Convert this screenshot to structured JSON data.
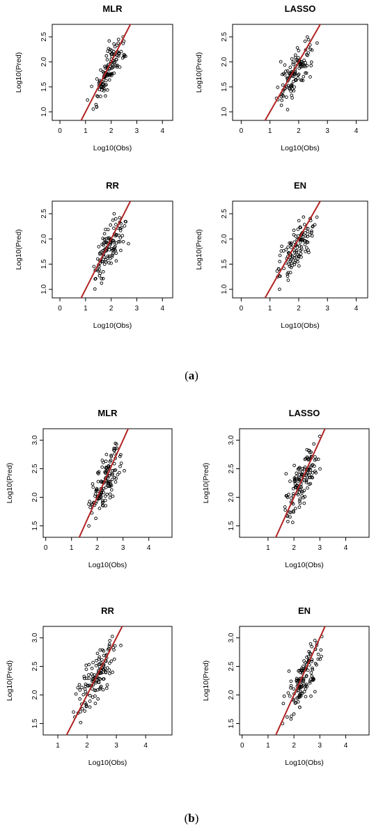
{
  "captions": {
    "a": {
      "open": "(",
      "letter": "a",
      "close": ")"
    },
    "b": {
      "open": "(",
      "letter": "b",
      "close": ")"
    }
  },
  "colors": {
    "fit_line": "#b22222",
    "points": "#000000",
    "frame": "#000000"
  },
  "chart_data": [
    {
      "id": "a-MLR",
      "type": "scatter",
      "title": "MLR",
      "xlabel": "Log10(Obs)",
      "ylabel": "Log10(Pred)",
      "xlim": [
        -0.3,
        4.4
      ],
      "ylim": [
        0.83,
        2.75
      ],
      "xticks": [
        "0",
        "1",
        "2",
        "3",
        "4"
      ],
      "yticks": [
        "1.0",
        "1.5",
        "2.0",
        "2.5"
      ],
      "fit_line": {
        "slope": 1,
        "intercept": 0
      },
      "point_cloud": {
        "n": 120,
        "x_range": [
          1.0,
          2.8
        ],
        "y_range": [
          1.0,
          2.6
        ],
        "seed": 11
      }
    },
    {
      "id": "a-LASSO",
      "type": "scatter",
      "title": "LASSO",
      "xlabel": "Log10(Obs)",
      "ylabel": "Log10(Pred)",
      "xlim": [
        -0.3,
        4.4
      ],
      "ylim": [
        0.83,
        2.75
      ],
      "xticks": [
        "0",
        "1",
        "2",
        "3",
        "4"
      ],
      "yticks": [
        "1.0",
        "1.5",
        "2.0",
        "2.5"
      ],
      "fit_line": {
        "slope": 1,
        "intercept": 0
      },
      "point_cloud": {
        "n": 120,
        "x_range": [
          1.0,
          2.8
        ],
        "y_range": [
          1.0,
          2.6
        ],
        "seed": 23
      }
    },
    {
      "id": "a-RR",
      "type": "scatter",
      "title": "RR",
      "xlabel": "Log10(Obs)",
      "ylabel": "Log10(Pred)",
      "xlim": [
        -0.3,
        4.4
      ],
      "ylim": [
        0.83,
        2.75
      ],
      "xticks": [
        "0",
        "1",
        "2",
        "3",
        "4"
      ],
      "yticks": [
        "1.0",
        "1.5",
        "2.0",
        "2.5"
      ],
      "fit_line": {
        "slope": 1,
        "intercept": 0
      },
      "point_cloud": {
        "n": 120,
        "x_range": [
          1.0,
          2.8
        ],
        "y_range": [
          1.0,
          2.6
        ],
        "seed": 37
      }
    },
    {
      "id": "a-EN",
      "type": "scatter",
      "title": "EN",
      "xlabel": "Log10(Obs)",
      "ylabel": "Log10(Pred)",
      "xlim": [
        -0.3,
        4.4
      ],
      "ylim": [
        0.83,
        2.75
      ],
      "xticks": [
        "0",
        "1",
        "2",
        "3",
        "4"
      ],
      "yticks": [
        "1.0",
        "1.5",
        "2.0",
        "2.5"
      ],
      "fit_line": {
        "slope": 1,
        "intercept": 0
      },
      "point_cloud": {
        "n": 120,
        "x_range": [
          1.0,
          2.8
        ],
        "y_range": [
          1.0,
          2.6
        ],
        "seed": 41
      }
    },
    {
      "id": "b-MLR",
      "type": "scatter",
      "title": "MLR",
      "xlabel": "Log10(Obs)",
      "ylabel": "Log10(Pred)",
      "xlim": [
        -0.1,
        4.9
      ],
      "ylim": [
        1.3,
        3.2
      ],
      "xticks": [
        "0",
        "1",
        "2",
        "3",
        "4"
      ],
      "yticks": [
        "1.5",
        "2.0",
        "2.5",
        "3.0"
      ],
      "fit_line": {
        "slope": 1,
        "intercept": 0
      },
      "point_cloud": {
        "n": 130,
        "x_range": [
          1.4,
          3.2
        ],
        "y_range": [
          1.5,
          3.1
        ],
        "seed": 53
      }
    },
    {
      "id": "b-LASSO",
      "type": "scatter",
      "title": "LASSO",
      "xlabel": "Log10(Obs)",
      "ylabel": "Log10(Pred)",
      "xlim": [
        -0.1,
        4.9
      ],
      "ylim": [
        1.3,
        3.2
      ],
      "xticks": [
        "1",
        "2",
        "3",
        "4"
      ],
      "yticks": [
        "1.5",
        "2.0",
        "2.5",
        "3.0"
      ],
      "fit_line": {
        "slope": 1,
        "intercept": 0
      },
      "point_cloud": {
        "n": 130,
        "x_range": [
          1.4,
          3.3
        ],
        "y_range": [
          1.5,
          3.1
        ],
        "seed": 67
      }
    },
    {
      "id": "b-RR",
      "type": "scatter",
      "title": "RR",
      "xlabel": "Log10(Obs)",
      "ylabel": "Log10(Pred)",
      "xlim": [
        0.5,
        4.9
      ],
      "ylim": [
        1.3,
        3.2
      ],
      "xticks": [
        "1",
        "2",
        "3",
        "4"
      ],
      "yticks": [
        "1.5",
        "2.0",
        "2.5",
        "3.0"
      ],
      "fit_line": {
        "slope": 1,
        "intercept": 0
      },
      "point_cloud": {
        "n": 130,
        "x_range": [
          1.4,
          3.2
        ],
        "y_range": [
          1.5,
          3.1
        ],
        "seed": 71
      }
    },
    {
      "id": "b-EN",
      "type": "scatter",
      "title": "EN",
      "xlabel": "Log10(Obs)",
      "ylabel": "Log10(Pred)",
      "xlim": [
        -0.1,
        4.9
      ],
      "ylim": [
        1.3,
        3.2
      ],
      "xticks": [
        "0",
        "1",
        "2",
        "3",
        "4"
      ],
      "yticks": [
        "1.5",
        "2.0",
        "2.5",
        "3.0"
      ],
      "fit_line": {
        "slope": 1,
        "intercept": 0
      },
      "point_cloud": {
        "n": 130,
        "x_range": [
          1.4,
          3.3
        ],
        "y_range": [
          1.5,
          3.1
        ],
        "seed": 83
      }
    }
  ]
}
